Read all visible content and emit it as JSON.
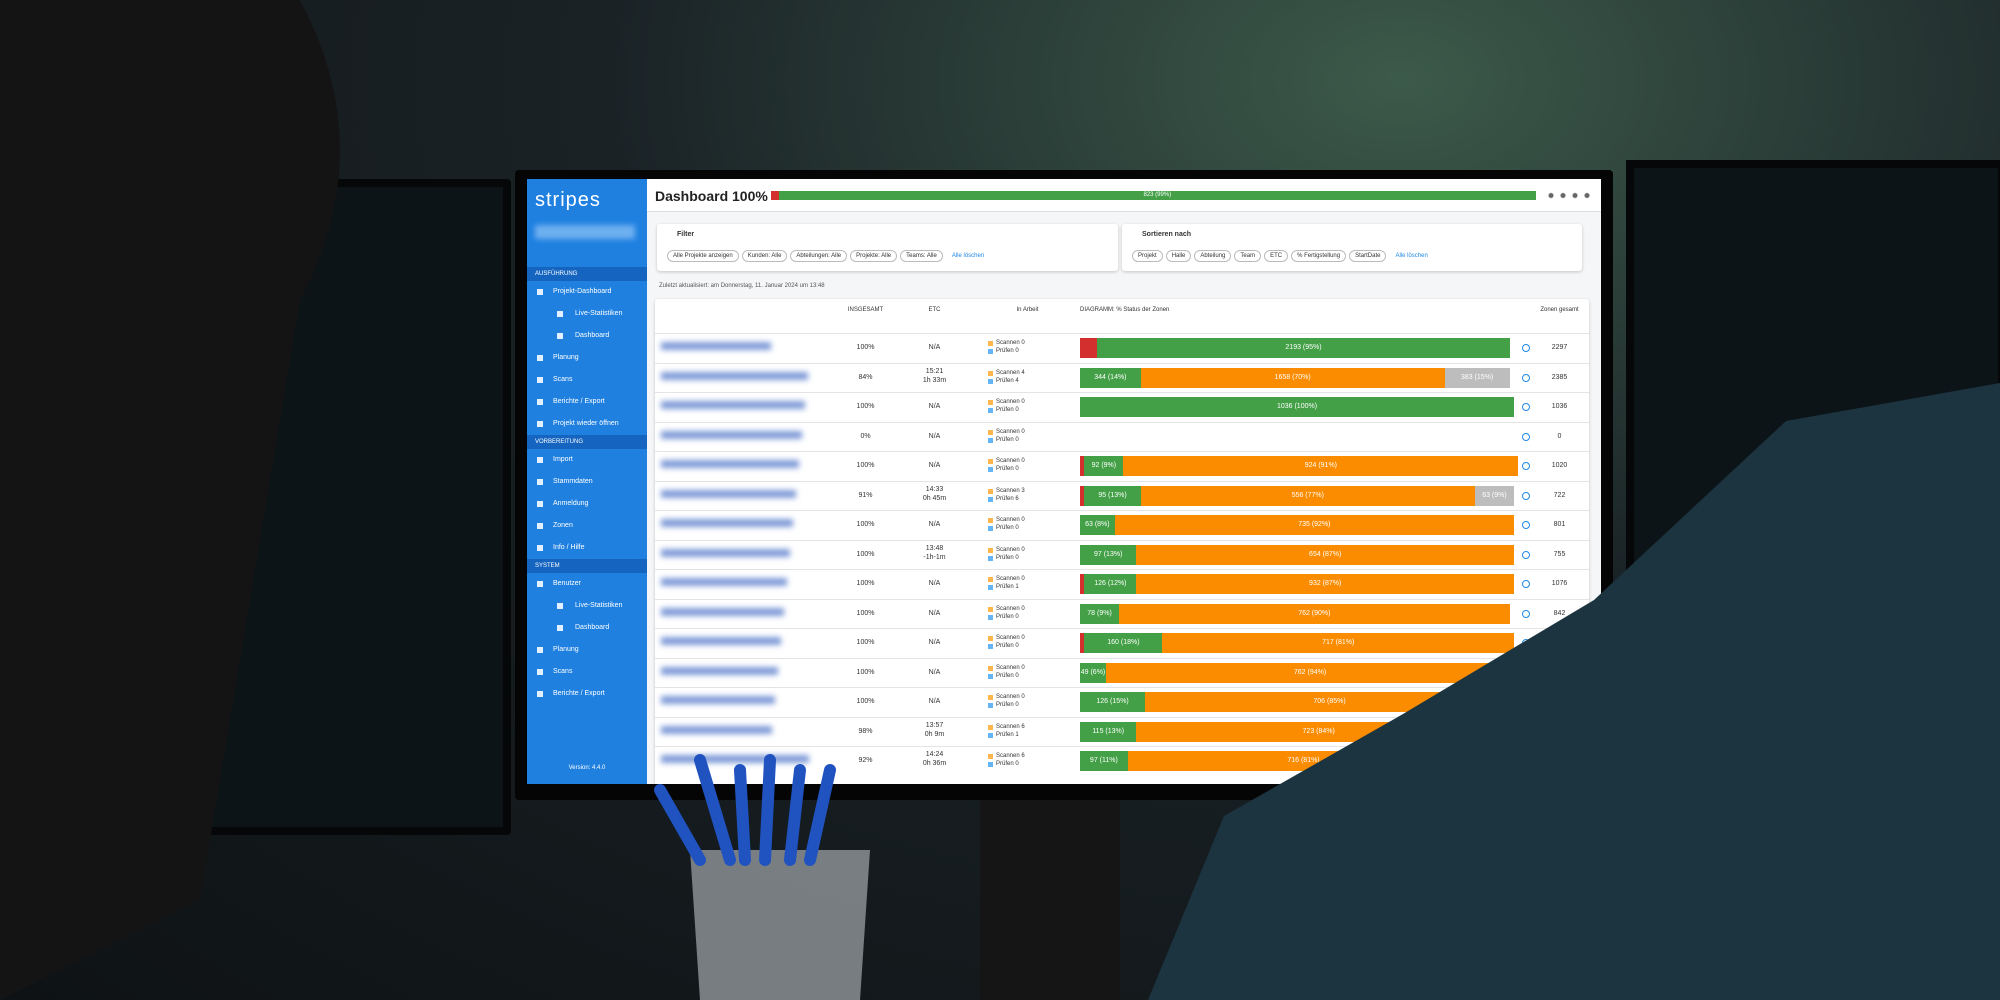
{
  "app": {
    "logo": "stripes",
    "version": "Version: 4.4.0"
  },
  "sidebar": {
    "sections": [
      {
        "title": "AUSFÜHRUNG",
        "items": [
          {
            "label": "Projekt-Dashboard",
            "children": [
              "Live-Statistiken",
              "Dashboard"
            ]
          },
          {
            "label": "Planung"
          },
          {
            "label": "Scans"
          },
          {
            "label": "Berichte / Export"
          },
          {
            "label": "Projekt wieder öffnen"
          }
        ]
      },
      {
        "title": "VORBEREITUNG",
        "items": [
          {
            "label": "Import"
          },
          {
            "label": "Stammdaten"
          },
          {
            "label": "Anmeldung"
          },
          {
            "label": "Zonen"
          },
          {
            "label": "Info / Hilfe"
          }
        ]
      },
      {
        "title": "SYSTEM",
        "items": [
          {
            "label": "Benutzer",
            "children": [
              "Live-Statistiken",
              "Dashboard"
            ]
          },
          {
            "label": "Planung"
          },
          {
            "label": "Scans"
          },
          {
            "label": "Berichte / Export"
          }
        ]
      }
    ]
  },
  "header": {
    "title": "Dashboard 100%",
    "progress": {
      "label": "823 (99%)",
      "percent": 99
    }
  },
  "filter": {
    "title": "Filter",
    "chips": [
      "Alle Projekte anzeigen",
      "Kunden: Alle",
      "Abteilungen: Alle",
      "Projekte: Alle",
      "Teams: Alle"
    ],
    "clear": "Alle löschen"
  },
  "sort": {
    "title": "Sortieren nach",
    "chips": [
      "Projekt",
      "Halle",
      "Abteilung",
      "Team",
      "ETC",
      "% Fertigstellung",
      "StartDate"
    ],
    "clear": "Alle löschen"
  },
  "updated": "Zuletzt aktualisiert: am Donnerstag, 11. Januar 2024 um 13:48",
  "table": {
    "columns": [
      "INSGESAMT",
      "ETC",
      "In Arbeit",
      "DIAGRAMM: % Status der Zonen",
      "Zonen gesamt"
    ],
    "rows": [
      {
        "total": "100%",
        "etc": [
          "N/A"
        ],
        "work": [
          "Scannen 0",
          "Prüfen 0"
        ],
        "segments": [
          {
            "percent": 4,
            "color": "#d32f2f"
          },
          {
            "label": "2193 (95%)",
            "percent": 95,
            "color": "#43a047"
          }
        ],
        "zones": "2297"
      },
      {
        "total": "84%",
        "etc": [
          "15:21",
          "1h 33m"
        ],
        "work": [
          "Scannen 4",
          "Prüfen 4"
        ],
        "segments": [
          {
            "label": "344 (14%)",
            "percent": 14,
            "color": "#43a047"
          },
          {
            "label": "1658 (70%)",
            "percent": 70,
            "color": "#fb8c00"
          },
          {
            "label": "383 (15%)",
            "percent": 15,
            "color": "#bdbdbd"
          }
        ],
        "zones": "2385"
      },
      {
        "total": "100%",
        "etc": [
          "N/A"
        ],
        "work": [
          "Scannen 0",
          "Prüfen 0"
        ],
        "segments": [
          {
            "label": "1036 (100%)",
            "percent": 100,
            "color": "#43a047"
          }
        ],
        "zones": "1036"
      },
      {
        "total": "0%",
        "etc": [
          "N/A"
        ],
        "work": [
          "Scannen 0",
          "Prüfen 0"
        ],
        "segments": [],
        "zones": "0"
      },
      {
        "total": "100%",
        "etc": [
          "N/A"
        ],
        "work": [
          "Scannen 0",
          "Prüfen 0"
        ],
        "segments": [
          {
            "percent": 1,
            "color": "#d32f2f"
          },
          {
            "label": "92 (9%)",
            "percent": 9,
            "color": "#43a047"
          },
          {
            "label": "924 (91%)",
            "percent": 91,
            "color": "#fb8c00"
          }
        ],
        "zones": "1020"
      },
      {
        "total": "91%",
        "etc": [
          "14:33",
          "0h 45m"
        ],
        "work": [
          "Scannen 3",
          "Prüfen 6"
        ],
        "segments": [
          {
            "percent": 1,
            "color": "#d32f2f"
          },
          {
            "label": "95 (13%)",
            "percent": 13,
            "color": "#43a047"
          },
          {
            "label": "556 (77%)",
            "percent": 77,
            "color": "#fb8c00"
          },
          {
            "label": "63 (9%)",
            "percent": 9,
            "color": "#bdbdbd"
          }
        ],
        "zones": "722"
      },
      {
        "total": "100%",
        "etc": [
          "N/A"
        ],
        "work": [
          "Scannen 0",
          "Prüfen 0"
        ],
        "segments": [
          {
            "label": "63 (8%)",
            "percent": 8,
            "color": "#43a047"
          },
          {
            "label": "735 (92%)",
            "percent": 92,
            "color": "#fb8c00"
          }
        ],
        "zones": "801"
      },
      {
        "total": "100%",
        "etc": [
          "13:48",
          "-1h-1m"
        ],
        "work": [
          "Scannen 0",
          "Prüfen 0"
        ],
        "segments": [
          {
            "label": "97 (13%)",
            "percent": 13,
            "color": "#43a047"
          },
          {
            "label": "654 (87%)",
            "percent": 87,
            "color": "#fb8c00"
          }
        ],
        "zones": "755"
      },
      {
        "total": "100%",
        "etc": [
          "N/A"
        ],
        "work": [
          "Scannen 0",
          "Prüfen 1"
        ],
        "segments": [
          {
            "percent": 1,
            "color": "#d32f2f"
          },
          {
            "label": "126 (12%)",
            "percent": 12,
            "color": "#43a047"
          },
          {
            "label": "932 (87%)",
            "percent": 87,
            "color": "#fb8c00"
          }
        ],
        "zones": "1076"
      },
      {
        "total": "100%",
        "etc": [
          "N/A"
        ],
        "work": [
          "Scannen 0",
          "Prüfen 0"
        ],
        "segments": [
          {
            "label": "78 (9%)",
            "percent": 9,
            "color": "#43a047"
          },
          {
            "label": "762 (90%)",
            "percent": 90,
            "color": "#fb8c00"
          }
        ],
        "zones": "842"
      },
      {
        "total": "100%",
        "etc": [
          "N/A"
        ],
        "work": [
          "Scannen 0",
          "Prüfen 0"
        ],
        "segments": [
          {
            "percent": 1,
            "color": "#d32f2f"
          },
          {
            "label": "160 (18%)",
            "percent": 18,
            "color": "#43a047"
          },
          {
            "label": "717 (81%)",
            "percent": 81,
            "color": "#fb8c00"
          }
        ]
      },
      {
        "total": "100%",
        "etc": [
          "N/A"
        ],
        "work": [
          "Scannen 0",
          "Prüfen 0"
        ],
        "segments": [
          {
            "label": "49 (6%)",
            "percent": 6,
            "color": "#43a047"
          },
          {
            "label": "762 (94%)",
            "percent": 94,
            "color": "#fb8c00"
          }
        ]
      },
      {
        "total": "100%",
        "etc": [
          "N/A"
        ],
        "work": [
          "Scannen 0",
          "Prüfen 0"
        ],
        "segments": [
          {
            "label": "126 (15%)",
            "percent": 15,
            "color": "#43a047"
          },
          {
            "label": "706 (85%)",
            "percent": 85,
            "color": "#fb8c00"
          }
        ]
      },
      {
        "total": "98%",
        "etc": [
          "13:57",
          "0h 9m"
        ],
        "work": [
          "Scannen 6",
          "Prüfen 1"
        ],
        "segments": [
          {
            "label": "115 (13%)",
            "percent": 13,
            "color": "#43a047"
          },
          {
            "label": "723 (84%)",
            "percent": 84,
            "color": "#fb8c00"
          }
        ]
      },
      {
        "total": "92%",
        "etc": [
          "14:24",
          "0h 36m"
        ],
        "work": [
          "Scannen 6",
          "Prüfen 0"
        ],
        "segments": [
          {
            "label": "97 (11%)",
            "percent": 11,
            "color": "#43a047"
          },
          {
            "label": "716 (81%)",
            "percent": 81,
            "color": "#fb8c00"
          }
        ]
      }
    ]
  }
}
